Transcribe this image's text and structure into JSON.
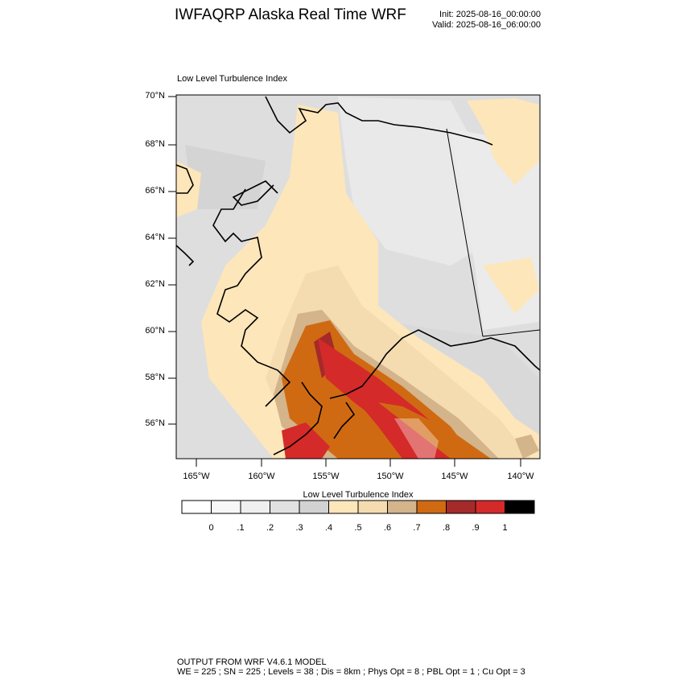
{
  "title": "IWFAQRP Alaska Real Time WRF",
  "init": "Init: 2025-08-16_00:00:00",
  "valid": "Valid: 2025-08-16_06:00:00",
  "map": {
    "subtitle": "Low Level Turbulence Index",
    "lat_labels": [
      "70°N",
      "68°N",
      "66°N",
      "64°N",
      "62°N",
      "60°N",
      "58°N",
      "56°N"
    ],
    "lon_labels": [
      "165°W",
      "160°W",
      "155°W",
      "150°W",
      "145°W",
      "140°W"
    ]
  },
  "colorbar": {
    "title": "Low Level Turbulence Index",
    "labels": [
      "0",
      ".1",
      ".2",
      ".3",
      ".4",
      ".5",
      ".6",
      ".7",
      ".8",
      ".9",
      "1"
    ],
    "colors": [
      "#ffffff",
      "#f7f7f7",
      "#efefef",
      "#e1e1e1",
      "#d2d2d2",
      "#fde6b9",
      "#f4dcb0",
      "#d3b48b",
      "#d06a12",
      "#a52a2a",
      "#d42a2a",
      "#000000"
    ]
  },
  "footer": {
    "line1": "OUTPUT FROM WRF V4.6.1 MODEL",
    "line2": "WE = 225 ; SN = 225 ; Levels = 38 ; Dis = 8km ; Phys Opt = 8 ; PBL Opt = 1 ; Cu Opt = 3"
  }
}
